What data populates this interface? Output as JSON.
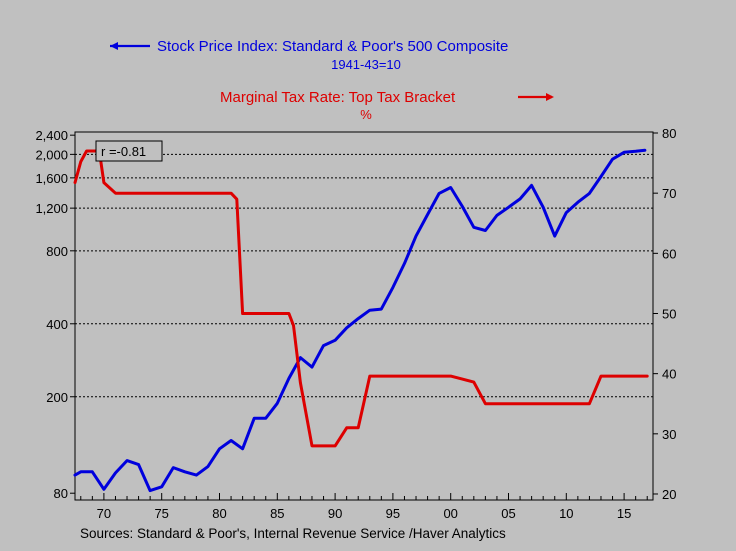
{
  "chart_data": {
    "type": "line",
    "x_ticks": [
      70,
      75,
      80,
      85,
      90,
      95,
      "00",
      "05",
      10,
      15
    ],
    "x_range": [
      1967.5,
      2017.5
    ],
    "left_axis": {
      "scale": "log",
      "ticks": [
        80,
        200,
        400,
        800,
        1200,
        1600,
        2000,
        2400
      ],
      "range": [
        75,
        2450
      ]
    },
    "right_axis": {
      "scale": "linear",
      "ticks": [
        20,
        30,
        40,
        50,
        60,
        70,
        80
      ],
      "range": [
        19,
        80
      ]
    },
    "grid_lines": [
      200,
      400,
      800,
      1200,
      1600,
      2000
    ],
    "series": [
      {
        "name": "Stock Price Index: Standard & Poor's 500 Composite",
        "subtitle": "1941-43=10",
        "color": "#0000dd",
        "axis": "left",
        "arrow": "left",
        "x": [
          1967.5,
          1968,
          1969,
          1970,
          1971,
          1972,
          1973,
          1974,
          1975,
          1976,
          1977,
          1978,
          1979,
          1980,
          1981,
          1982,
          1983,
          1984,
          1985,
          1986,
          1987,
          1988,
          1989,
          1990,
          1991,
          1992,
          1993,
          1994,
          1995,
          1996,
          1997,
          1998,
          1999,
          2000,
          2001,
          2002,
          2003,
          2004,
          2005,
          2006,
          2007,
          2008,
          2009,
          2010,
          2011,
          2012,
          2013,
          2014,
          2015,
          2016,
          2016.8
        ],
        "y": [
          95,
          98,
          98,
          83,
          97,
          109,
          105,
          82,
          85,
          102,
          98,
          95,
          103,
          122,
          132,
          122,
          163,
          163,
          188,
          238,
          290,
          265,
          325,
          342,
          385,
          420,
          455,
          460,
          565,
          710,
          920,
          1130,
          1380,
          1460,
          1220,
          1000,
          970,
          1120,
          1210,
          1310,
          1490,
          1210,
          920,
          1150,
          1270,
          1380,
          1620,
          1910,
          2040,
          2060,
          2080
        ]
      },
      {
        "name": "Marginal Tax Rate: Top Tax Bracket",
        "subtitle": "%",
        "color": "#dd0000",
        "axis": "right",
        "arrow": "right",
        "x": [
          1967.5,
          1968,
          1968.5,
          1969,
          1969.6,
          1970,
          1971,
          1980,
          1981,
          1981.5,
          1982,
          1986,
          1986.4,
          1987,
          1988,
          1990,
          1991,
          1992,
          1993,
          2000,
          2001,
          2002,
          2003,
          2012,
          2013,
          2017
        ],
        "y": [
          71.75,
          75.25,
          77,
          77,
          77,
          71.75,
          70,
          70,
          70,
          69,
          50,
          50,
          48,
          38.5,
          28,
          28,
          31,
          31,
          39.6,
          39.6,
          39.1,
          38.6,
          35,
          35,
          39.6,
          39.6
        ]
      }
    ],
    "annotation": "r =-0.81",
    "source": "Sources:   Standard & Poor's, Internal Revenue Service /Haver Analytics"
  }
}
